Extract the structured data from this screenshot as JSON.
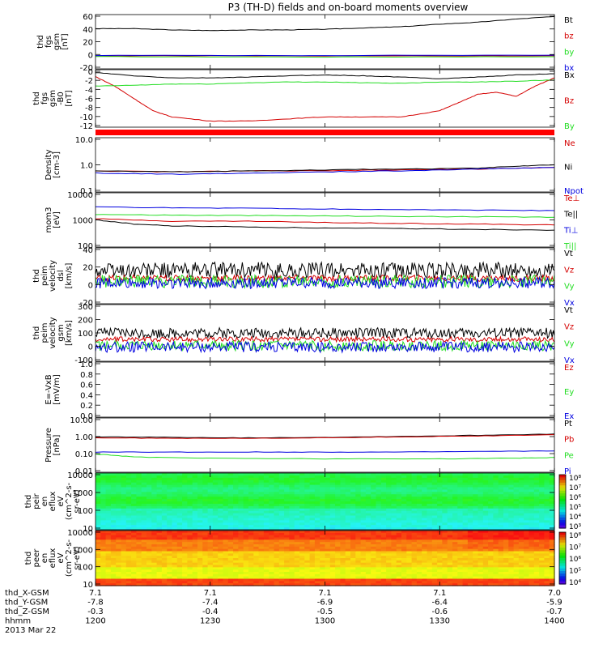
{
  "title": "P3 (TH-D) fields and on-board moments overview",
  "footer": {
    "rows": [
      {
        "label": "thd_X-GSM",
        "values": [
          "7.1",
          "7.1",
          "7.1",
          "7.1",
          "7.0"
        ]
      },
      {
        "label": "thd_Y-GSM",
        "values": [
          "-7.8",
          "-7.4",
          "-6.9",
          "-6.4",
          "-5.9"
        ]
      },
      {
        "label": "thd_Z-GSM",
        "values": [
          "-0.3",
          "-0.4",
          "-0.5",
          "-0.6",
          "-0.7"
        ]
      },
      {
        "label": "hhmm",
        "values": [
          "1200",
          "1230",
          "1300",
          "1330",
          "1400"
        ]
      }
    ],
    "date": "2013 Mar 22"
  },
  "colors": {
    "black": "#000000",
    "red": "#d40000",
    "green": "#22dd22",
    "blue": "#0000e0"
  },
  "chart_data": [
    {
      "type": "line",
      "ylabel": [
        "thd",
        "fgs",
        "gsm",
        "[nT]"
      ],
      "yticks": [
        "60",
        "40",
        "20",
        "0",
        "-20"
      ],
      "ylim": [
        -20,
        65
      ],
      "scale": "linear",
      "series": [
        {
          "name": "Bt",
          "color": "#000000",
          "x": [
            0,
            10,
            20,
            30,
            40,
            50,
            60,
            70,
            80,
            90,
            100,
            110,
            120
          ],
          "values": [
            43,
            43,
            41,
            40,
            41,
            41,
            42,
            44,
            46,
            50,
            53,
            58,
            62
          ]
        },
        {
          "name": "bz",
          "color": "#d40000",
          "x": [
            0,
            60,
            120
          ],
          "values": [
            0.5,
            0.3,
            0.5
          ]
        },
        {
          "name": "by",
          "color": "#22dd22",
          "x": [
            0,
            60,
            120
          ],
          "values": [
            -1,
            -1.5,
            -1
          ]
        },
        {
          "name": "bx",
          "color": "#0000e0",
          "x": [
            0,
            60,
            120
          ],
          "values": [
            1,
            1,
            1.5
          ]
        }
      ]
    },
    {
      "type": "line",
      "ylabel": [
        "thd",
        "fgs",
        "gsm",
        "-B0",
        "[nT]"
      ],
      "yticks": [
        "0",
        "-2",
        "-4",
        "-6",
        "-8",
        "-10",
        "-12"
      ],
      "ylim": [
        -13,
        1
      ],
      "scale": "linear",
      "series": [
        {
          "name": "Bx",
          "color": "#000000",
          "x": [
            0,
            10,
            20,
            30,
            40,
            50,
            60,
            70,
            80,
            90,
            100,
            110,
            120
          ],
          "values": [
            0.3,
            -0.5,
            -1,
            -1,
            -0.8,
            -0.5,
            -0.3,
            -0.5,
            -0.8,
            -1.2,
            -0.8,
            -0.3,
            0
          ]
        },
        {
          "name": "Bz",
          "color": "#d40000",
          "x": [
            0,
            5,
            10,
            15,
            20,
            30,
            40,
            50,
            60,
            70,
            80,
            90,
            95,
            100,
            105,
            110,
            115,
            120
          ],
          "values": [
            -0.7,
            -3,
            -6,
            -9,
            -10.5,
            -11.5,
            -11.5,
            -11,
            -10.5,
            -10.5,
            -10.5,
            -9,
            -7,
            -5,
            -4.5,
            -5.5,
            -3,
            -1
          ]
        },
        {
          "name": "By",
          "color": "#22dd22",
          "x": [
            0,
            10,
            20,
            30,
            40,
            50,
            60,
            70,
            80,
            90,
            100,
            110,
            120
          ],
          "values": [
            -3,
            -2.8,
            -2.5,
            -2.5,
            -2.2,
            -2,
            -2,
            -2.2,
            -2.3,
            -2,
            -2,
            -1.8,
            -1.5
          ]
        }
      ]
    },
    {
      "type": "line",
      "ylabel": [
        "Density",
        "[cm-3]"
      ],
      "yticks": [
        "10.0",
        "1.0",
        "0.1"
      ],
      "ylim": [
        0.1,
        10
      ],
      "scale": "log",
      "series": [
        {
          "name": "Ne",
          "color": "#d40000",
          "x": [
            0,
            20,
            40,
            60,
            80,
            100,
            120
          ],
          "values": [
            0.6,
            0.55,
            0.6,
            0.6,
            0.65,
            0.7,
            0.8
          ]
        },
        {
          "name": "Ni",
          "color": "#000000",
          "x": [
            0,
            20,
            40,
            60,
            80,
            100,
            110,
            120
          ],
          "values": [
            0.6,
            0.55,
            0.6,
            0.65,
            0.7,
            0.75,
            0.9,
            1.0
          ]
        },
        {
          "name": "Npot",
          "color": "#0000e0",
          "x": [
            0,
            20,
            40,
            60,
            80,
            100,
            120
          ],
          "values": [
            0.5,
            0.45,
            0.5,
            0.55,
            0.6,
            0.7,
            0.8
          ]
        }
      ]
    },
    {
      "type": "line",
      "ylabel": [
        "mom3",
        "[eV]"
      ],
      "yticks": [
        "10000",
        "1000",
        "100"
      ],
      "ylim": [
        100,
        10000
      ],
      "scale": "log",
      "series": [
        {
          "name": "Te⊥",
          "color": "#d40000",
          "x": [
            0,
            20,
            40,
            60,
            80,
            100,
            120
          ],
          "values": [
            1100,
            900,
            900,
            800,
            750,
            700,
            650
          ]
        },
        {
          "name": "Te||",
          "color": "#000000",
          "x": [
            0,
            10,
            20,
            40,
            60,
            80,
            100,
            120
          ],
          "values": [
            1000,
            700,
            600,
            550,
            500,
            480,
            450,
            420
          ]
        },
        {
          "name": "Ti⊥",
          "color": "#0000e0",
          "x": [
            0,
            20,
            40,
            60,
            80,
            100,
            120
          ],
          "values": [
            3000,
            2800,
            2700,
            2500,
            2400,
            2300,
            2200
          ]
        },
        {
          "name": "Ti||",
          "color": "#22dd22",
          "x": [
            0,
            20,
            40,
            60,
            80,
            100,
            120
          ],
          "values": [
            1600,
            1500,
            1450,
            1400,
            1350,
            1300,
            1250
          ]
        }
      ]
    },
    {
      "type": "line",
      "ylabel": [
        "thd",
        "peim",
        "velocity",
        "dsl",
        "[km/s]"
      ],
      "yticks": [
        "40",
        "20",
        "0",
        "-20"
      ],
      "ylim": [
        -30,
        40
      ],
      "scale": "linear",
      "series": [
        {
          "name": "Vt",
          "color": "#000000",
          "x": [
            0,
            120
          ],
          "values": [
            12,
            12
          ],
          "noise": 10
        },
        {
          "name": "Vz",
          "color": "#d40000",
          "x": [
            0,
            120
          ],
          "values": [
            2,
            2
          ],
          "noise": 4
        },
        {
          "name": "Vy",
          "color": "#22dd22",
          "x": [
            0,
            120
          ],
          "values": [
            -2,
            -2
          ],
          "noise": 8
        },
        {
          "name": "Vx",
          "color": "#0000e0",
          "x": [
            0,
            120
          ],
          "values": [
            -4,
            -4
          ],
          "noise": 7
        }
      ]
    },
    {
      "type": "line",
      "ylabel": [
        "thd",
        "peim",
        "velocity",
        "gsm",
        "[km/s]"
      ],
      "yticks": [
        "300",
        "200",
        "100",
        "0",
        "-100"
      ],
      "ylim": [
        -140,
        300
      ],
      "scale": "linear",
      "series": [
        {
          "name": "Vt",
          "color": "#000000",
          "x": [
            0,
            120
          ],
          "values": [
            80,
            80
          ],
          "noise": 40
        },
        {
          "name": "Vz",
          "color": "#d40000",
          "x": [
            0,
            120
          ],
          "values": [
            30,
            30
          ],
          "noise": 20
        },
        {
          "name": "Vy",
          "color": "#22dd22",
          "x": [
            0,
            120
          ],
          "values": [
            -20,
            -20
          ],
          "noise": 40
        },
        {
          "name": "Vx",
          "color": "#0000e0",
          "x": [
            0,
            120
          ],
          "values": [
            -30,
            -30
          ],
          "noise": 40
        }
      ]
    },
    {
      "type": "line",
      "ylabel": [
        "E=-VxB",
        "[mV/m]"
      ],
      "yticks": [
        "1.0",
        "0.8",
        "0.6",
        "0.4",
        "0.2",
        "0.0"
      ],
      "ylim": [
        0,
        1
      ],
      "scale": "linear",
      "series": [
        {
          "name": "Ez",
          "color": "#d40000",
          "x": [],
          "values": []
        },
        {
          "name": "Ey",
          "color": "#22dd22",
          "x": [],
          "values": []
        },
        {
          "name": "Ex",
          "color": "#0000e0",
          "x": [],
          "values": []
        }
      ]
    },
    {
      "type": "line",
      "ylabel": [
        "Pressure",
        "[nPa]"
      ],
      "yticks": [
        "10.00",
        "1.00",
        "0.10",
        "0.01"
      ],
      "ylim": [
        0.01,
        10
      ],
      "scale": "log",
      "series": [
        {
          "name": "Pt",
          "color": "#000000",
          "x": [
            0,
            20,
            40,
            60,
            80,
            100,
            120
          ],
          "values": [
            0.9,
            0.85,
            0.8,
            0.85,
            0.95,
            1.1,
            1.3
          ]
        },
        {
          "name": "Pb",
          "color": "#d40000",
          "x": [
            0,
            20,
            40,
            60,
            80,
            100,
            120
          ],
          "values": [
            0.8,
            0.75,
            0.75,
            0.8,
            0.9,
            1.0,
            1.2
          ]
        },
        {
          "name": "Pe",
          "color": "#22dd22",
          "x": [
            0,
            10,
            30,
            60,
            90,
            110,
            120
          ],
          "values": [
            0.1,
            0.07,
            0.06,
            0.055,
            0.055,
            0.06,
            0.065
          ]
        },
        {
          "name": "Pi",
          "color": "#0000e0",
          "x": [
            0,
            20,
            40,
            60,
            80,
            100,
            120
          ],
          "values": [
            0.13,
            0.13,
            0.13,
            0.13,
            0.13,
            0.14,
            0.15
          ]
        }
      ]
    },
    {
      "type": "heatmap",
      "ylabel": [
        "thd",
        "peir",
        "en",
        "eflux",
        "eV",
        "(cm^2-s-",
        "sr-eV)"
      ],
      "yticks": [
        "10000",
        "1000",
        "100",
        "10"
      ],
      "ylim": [
        5,
        30000
      ],
      "scale": "log",
      "colorbar": {
        "ticks": [
          "10⁸",
          "10⁷",
          "10⁶",
          "10⁵",
          "10⁴",
          "10³"
        ],
        "range": [
          3,
          8
        ]
      }
    },
    {
      "type": "heatmap",
      "ylabel": [
        "thd",
        "peer",
        "en",
        "eflux",
        "eV",
        "(cm^2-s-",
        "sr-eV)"
      ],
      "yticks": [
        "10000",
        "1000",
        "100",
        "10"
      ],
      "ylim": [
        5,
        30000
      ],
      "scale": "log",
      "colorbar": {
        "ticks": [
          "10⁸",
          "10⁷",
          "10⁶",
          "10⁵",
          "10⁴"
        ],
        "range": [
          4,
          8
        ]
      }
    }
  ]
}
